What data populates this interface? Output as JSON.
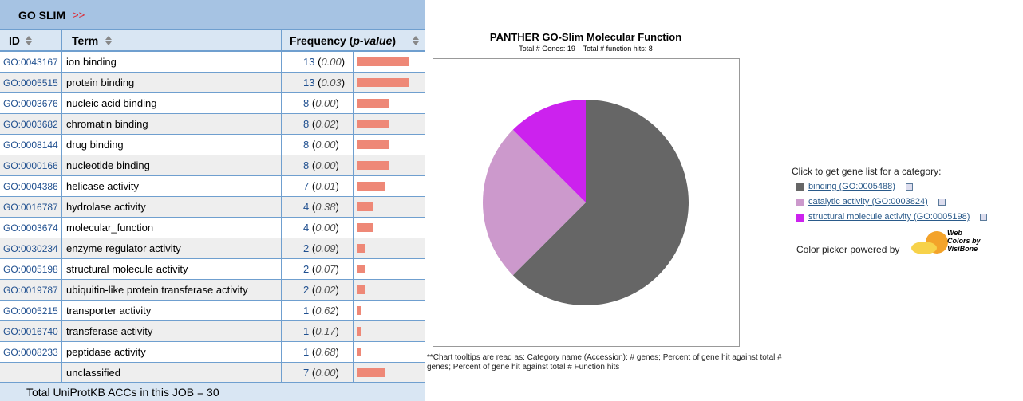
{
  "table": {
    "title": "GO SLIM",
    "title_arrow": ">>",
    "columns": {
      "id": "ID",
      "term": "Term",
      "frequency": "Frequency",
      "p_value": "p-value"
    },
    "rows": [
      {
        "id": "GO:0043167",
        "term": "ion binding",
        "count": 13,
        "p_value": "0.00"
      },
      {
        "id": "GO:0005515",
        "term": "protein binding",
        "count": 13,
        "p_value": "0.03"
      },
      {
        "id": "GO:0003676",
        "term": "nucleic acid binding",
        "count": 8,
        "p_value": "0.00"
      },
      {
        "id": "GO:0003682",
        "term": "chromatin binding",
        "count": 8,
        "p_value": "0.02"
      },
      {
        "id": "GO:0008144",
        "term": "drug binding",
        "count": 8,
        "p_value": "0.00"
      },
      {
        "id": "GO:0000166",
        "term": "nucleotide binding",
        "count": 8,
        "p_value": "0.00"
      },
      {
        "id": "GO:0004386",
        "term": "helicase activity",
        "count": 7,
        "p_value": "0.01"
      },
      {
        "id": "GO:0016787",
        "term": "hydrolase activity",
        "count": 4,
        "p_value": "0.38"
      },
      {
        "id": "GO:0003674",
        "term": "molecular_function",
        "count": 4,
        "p_value": "0.00"
      },
      {
        "id": "GO:0030234",
        "term": "enzyme regulator activity",
        "count": 2,
        "p_value": "0.09"
      },
      {
        "id": "GO:0005198",
        "term": "structural molecule activity",
        "count": 2,
        "p_value": "0.07"
      },
      {
        "id": "GO:0019787",
        "term": "ubiquitin-like protein transferase activity",
        "count": 2,
        "p_value": "0.02"
      },
      {
        "id": "GO:0005215",
        "term": "transporter activity",
        "count": 1,
        "p_value": "0.62"
      },
      {
        "id": "GO:0016740",
        "term": "transferase activity",
        "count": 1,
        "p_value": "0.17"
      },
      {
        "id": "GO:0008233",
        "term": "peptidase activity",
        "count": 1,
        "p_value": "0.68"
      },
      {
        "term": "unclassified",
        "count": 7,
        "p_value": "0.00"
      }
    ],
    "footer": "Total UniProtKB ACCs in this JOB = 30"
  },
  "chart_data": {
    "type": "pie",
    "title": "PANTHER GO-Slim Molecular Function",
    "subtitle": "Total # Genes: 19    Total # function hits: 8",
    "categories": [
      "binding (GO:0005488)",
      "catalytic activity (GO:0003824)",
      "structural molecule activity (GO:0005198)"
    ],
    "values": [
      5,
      2,
      1
    ],
    "colors": [
      "#666666",
      "#cc99cc",
      "#cc22ee"
    ],
    "legend_prompt": "Click to get gene list for a category:",
    "footnote": "**Chart tooltips are read as: Category name (Accession): # genes; Percent of gene hit against total # genes; Percent of gene hit against total # Function hits"
  },
  "color_picker": {
    "text": "Color picker powered by",
    "logo_line1": "Web",
    "logo_line2": "Colors by",
    "logo_line3": "VisiBone"
  }
}
